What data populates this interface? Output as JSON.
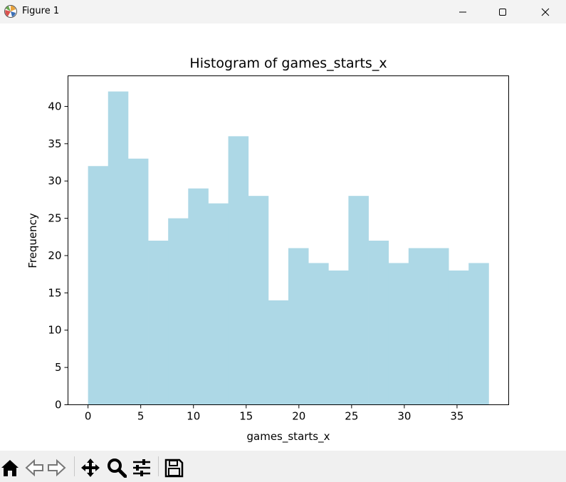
{
  "window": {
    "title": "Figure 1"
  },
  "toolbar": {
    "buttons": [
      "home-icon",
      "back-icon",
      "forward-icon",
      "pan-icon",
      "zoom-icon",
      "configure-icon",
      "save-icon"
    ]
  },
  "colors": {
    "bar": "#add8e6",
    "axis": "#000000",
    "titlebar": "#f3f3f3",
    "toolbar": "#f0f0f0"
  },
  "chart_data": {
    "type": "bar",
    "title": "Histogram of games_starts_x",
    "xlabel": "games_starts_x",
    "ylabel": "Frequency",
    "bin_start": 0,
    "bin_width": 1.9,
    "values": [
      32,
      42,
      33,
      22,
      25,
      29,
      27,
      36,
      28,
      14,
      21,
      19,
      18,
      28,
      22,
      19,
      21,
      21,
      18,
      19
    ],
    "xlim": [
      -1.9,
      39.9
    ],
    "ylim": [
      0,
      44.1
    ],
    "xticks": [
      0,
      5,
      10,
      15,
      20,
      25,
      30,
      35
    ],
    "yticks": [
      0,
      5,
      10,
      15,
      20,
      25,
      30,
      35,
      40
    ],
    "grid": false,
    "legend": "none"
  }
}
